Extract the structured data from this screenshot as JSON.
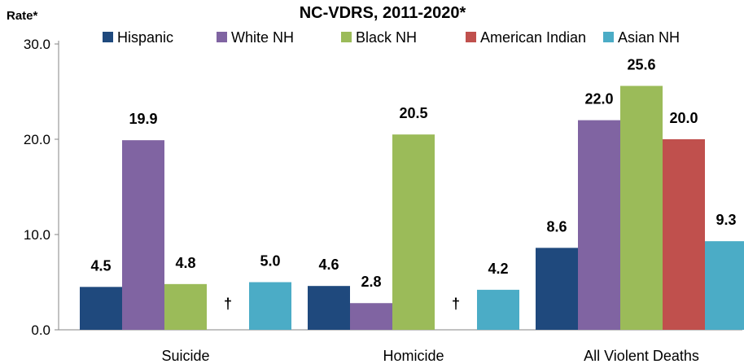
{
  "chart_data": {
    "type": "bar",
    "title": "NC-VDRS, 2011-2020*",
    "ylabel": "Rate*",
    "ylim": [
      0,
      30
    ],
    "yticks": [
      "0.0",
      "10.0",
      "20.0",
      "30.0"
    ],
    "categories": [
      "Suicide",
      "Homicide",
      "All Violent Deaths"
    ],
    "legend_position": "top",
    "series": [
      {
        "name": "Hispanic",
        "color": "#1F497D",
        "values": [
          4.5,
          4.6,
          8.6
        ],
        "labels": [
          "4.5",
          "4.6",
          "8.6"
        ]
      },
      {
        "name": "White NH",
        "color": "#8064A2",
        "values": [
          19.9,
          2.8,
          22.0
        ],
        "labels": [
          "19.9",
          "2.8",
          "22.0"
        ]
      },
      {
        "name": "Black NH",
        "color": "#9BBB59",
        "values": [
          4.8,
          20.5,
          25.6
        ],
        "labels": [
          "4.8",
          "20.5",
          "25.6"
        ]
      },
      {
        "name": "American Indian",
        "color": "#C0504D",
        "values": [
          null,
          null,
          20.0
        ],
        "labels": [
          "†",
          "†",
          "20.0"
        ]
      },
      {
        "name": "Asian NH",
        "color": "#4BACC6",
        "values": [
          5.0,
          4.2,
          9.3
        ],
        "labels": [
          "5.0",
          "4.2",
          "9.3"
        ]
      }
    ]
  }
}
